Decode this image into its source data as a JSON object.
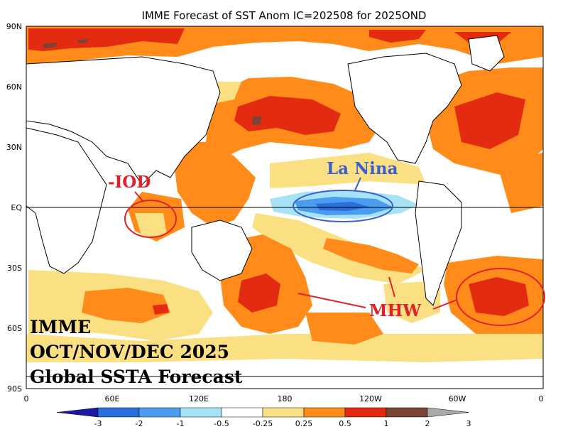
{
  "title": "IMME Forecast of SST Anom IC=202508 for 2025OND",
  "lat_labels": [
    "90N",
    "60N",
    "30N",
    "EQ",
    "30S",
    "60S",
    "90S"
  ],
  "lon_labels": [
    "0",
    "60E",
    "120E",
    "180",
    "120W",
    "60W",
    "0"
  ],
  "overlay": {
    "line1": "IMME",
    "line2": "OCT/NOV/DEC 2025",
    "line3": "Global SSTA Forecast"
  },
  "annotations": {
    "iod": "-IOD",
    "la_nina": "La Nina",
    "mhw": "MHW"
  },
  "colors": {
    "iod": "#e0202a",
    "la_nina": "#3a5fcd",
    "mhw": "#e0202a"
  },
  "colorbar": {
    "labels": [
      "-3",
      "-2",
      "-1",
      "-0.5",
      "-0.25",
      "0.25",
      "0.5",
      "1",
      "2",
      "3"
    ],
    "colors": [
      "#1a1aa6",
      "#2a6fdc",
      "#4a9cf0",
      "#a6e3f7",
      "#ffffff",
      "#fbe083",
      "#ff8c1a",
      "#e22b10",
      "#7a4535",
      "#aaaaaa"
    ]
  }
}
